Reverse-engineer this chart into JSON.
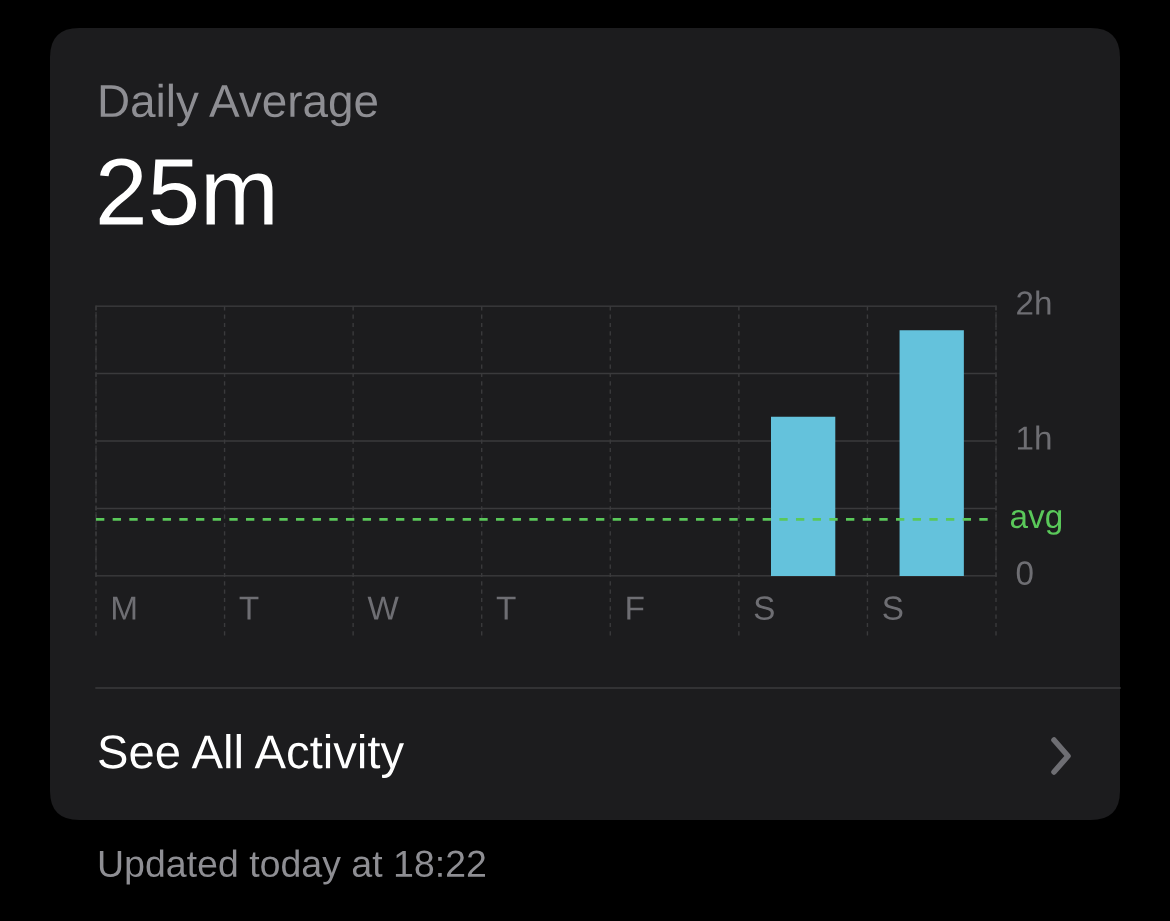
{
  "chart_data": {
    "type": "bar",
    "title": "Daily Average",
    "subtitle": "25m",
    "categories": [
      "M",
      "T",
      "W",
      "T",
      "F",
      "S",
      "S"
    ],
    "values": [
      0,
      0,
      0,
      0,
      0,
      1.18,
      1.82
    ],
    "color": "#64c2dc",
    "ylim": [
      0,
      2
    ],
    "yticks": [
      {
        "value": 0,
        "label": "0"
      },
      {
        "value": 0.5,
        "label": null
      },
      {
        "value": 1,
        "label": "1h"
      },
      {
        "value": 1.5,
        "label": null
      },
      {
        "value": 2,
        "label": "2h"
      }
    ],
    "ref_lines": [
      {
        "axis": "y",
        "value": 0.42,
        "label": "avg",
        "color": "#5ac85a",
        "line_style": "dashed"
      }
    ],
    "grid": true,
    "annotations": [
      "See All Activity",
      "Updated today at 18:22"
    ]
  }
}
